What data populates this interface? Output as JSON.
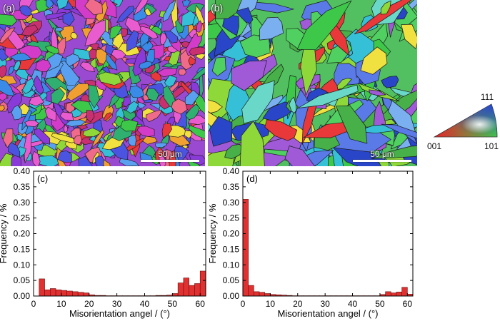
{
  "micrographs": [
    {
      "label": "(a)",
      "scale": "50 μm",
      "seed": 7,
      "kind": "fine"
    },
    {
      "label": "(b)",
      "scale": "50 μm",
      "seed": 23,
      "kind": "coarse"
    }
  ],
  "ipf_key": {
    "labels": {
      "top": "111",
      "left": "001",
      "right": "101"
    },
    "colors": {
      "corner_001": "#e8202a",
      "corner_101": "#3ec84a",
      "corner_111": "#2a46c8"
    }
  },
  "chart_data": [
    {
      "type": "bar",
      "panel_label": "(c)",
      "xlabel": "Misorientation angel / (°)",
      "ylabel": "Frequency / %",
      "xlim": [
        0,
        62
      ],
      "ylim": [
        0,
        0.4
      ],
      "xticks": [
        0,
        10,
        20,
        30,
        40,
        50,
        60
      ],
      "yticks": [
        "0.00",
        "0.05",
        "0.10",
        "0.15",
        "0.20",
        "0.25",
        "0.30",
        "0.35",
        "0.40"
      ],
      "bin_width": 2,
      "x": [
        3,
        5,
        7,
        9,
        11,
        13,
        15,
        17,
        19,
        21,
        23,
        25,
        27,
        29,
        31,
        33,
        35,
        37,
        39,
        41,
        43,
        45,
        47,
        49,
        51,
        53,
        55,
        57,
        59,
        61
      ],
      "values": [
        0.055,
        0.02,
        0.024,
        0.02,
        0.018,
        0.016,
        0.014,
        0.012,
        0.01,
        0.004,
        0.002,
        0.002,
        0.001,
        0.001,
        0.001,
        0.001,
        0.001,
        0.001,
        0.001,
        0.001,
        0.001,
        0.002,
        0.002,
        0.003,
        0.008,
        0.042,
        0.058,
        0.034,
        0.04,
        0.08
      ],
      "bar_color": "#e03030",
      "grid": false
    },
    {
      "type": "bar",
      "panel_label": "(d)",
      "xlabel": "Misorientation angel / (°)",
      "ylabel": "Frequency / %",
      "xlim": [
        0,
        62
      ],
      "ylim": [
        0,
        0.4
      ],
      "xticks": [
        0,
        10,
        20,
        30,
        40,
        50,
        60
      ],
      "yticks": [
        "0.00",
        "0.05",
        "0.10",
        "0.15",
        "0.20",
        "0.25",
        "0.30",
        "0.35",
        "0.40"
      ],
      "bin_width": 2,
      "x": [
        1,
        3,
        5,
        7,
        9,
        11,
        13,
        15,
        17,
        19,
        21,
        23,
        25,
        27,
        29,
        31,
        33,
        35,
        37,
        39,
        41,
        43,
        45,
        47,
        49,
        51,
        53,
        55,
        57,
        59,
        61
      ],
      "values": [
        0.31,
        0.034,
        0.014,
        0.012,
        0.008,
        0.005,
        0.004,
        0.003,
        0.002,
        0.001,
        0.001,
        0.001,
        0.001,
        0.001,
        0.001,
        0.001,
        0.001,
        0.001,
        0.001,
        0.001,
        0.001,
        0.001,
        0.001,
        0.001,
        0.001,
        0.005,
        0.014,
        0.01,
        0.013,
        0.028,
        0.006
      ],
      "bar_color": "#e03030",
      "grid": false
    }
  ]
}
